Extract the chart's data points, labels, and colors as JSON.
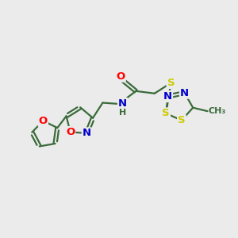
{
  "background_color": "#ebebeb",
  "bond_color": "#3a6b3a",
  "line_width": 1.6,
  "atom_colors": {
    "O": "#ff0000",
    "N": "#0000cc",
    "S": "#cccc00",
    "H": "#3a6b3a",
    "C": "#3a6b3a"
  },
  "font_size": 9.5,
  "font_size_small": 8.0
}
